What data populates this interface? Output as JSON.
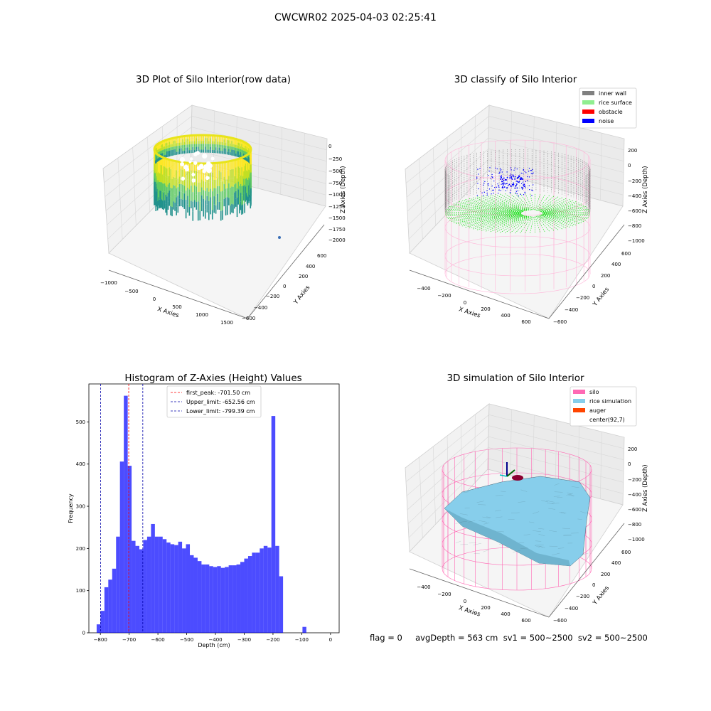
{
  "figure": {
    "suptitle": "CWCWR02 2025-04-03 02:25:41",
    "status_line": "flag = 0     avgDepth = 563 cm  sv1 = 500~2500  sv2 = 500~2500"
  },
  "panels": {
    "raw": {
      "title": "3D Plot of Silo Interior(row data)",
      "xlabel": "X Axies",
      "ylabel": "Y Axies",
      "zlabel": "Z Axies (Depth)",
      "xticks": [
        "−1000",
        "−500",
        "0",
        "500",
        "1000",
        "1500"
      ],
      "yticks": [
        "−600",
        "−400",
        "−200",
        "0",
        "200",
        "400",
        "600"
      ],
      "zticks": [
        "0",
        "−250",
        "−500",
        "−750",
        "−1000",
        "−1250",
        "−1500",
        "−1750",
        "−2000"
      ],
      "colors": [
        "#fde725",
        "#c2df23",
        "#5ec962",
        "#21918c"
      ]
    },
    "classify": {
      "title": "3D classify of Silo Interior",
      "xlabel": "X Axies",
      "ylabel": "Y Axies",
      "zlabel": "Z Axies (Depth)",
      "xticks": [
        "−400",
        "−200",
        "0",
        "200",
        "400",
        "600"
      ],
      "yticks": [
        "−600",
        "−400",
        "−200",
        "0",
        "200",
        "400",
        "600"
      ],
      "zticks": [
        "200",
        "0",
        "−200",
        "−400",
        "−600",
        "−800",
        "−1000"
      ],
      "legend": [
        {
          "label": "inner wall",
          "color": "#808080"
        },
        {
          "label": "rice surface",
          "color": "#90ee90"
        },
        {
          "label": "obstacle",
          "color": "#ff0000"
        },
        {
          "label": "noise",
          "color": "#0000ff"
        }
      ],
      "colors": {
        "wall": "#808080",
        "surface": "#00e000",
        "noise": "#0000ff",
        "cylinder": "#ffb6d9"
      }
    },
    "simulation": {
      "title": "3D simulation of Silo Interior",
      "xlabel": "X Axies",
      "ylabel": "Y Axies",
      "zlabel": "Z Axies (Depth)",
      "xticks": [
        "−400",
        "−200",
        "0",
        "200",
        "400",
        "600"
      ],
      "yticks": [
        "−600",
        "−400",
        "−200",
        "0",
        "200",
        "400",
        "600"
      ],
      "zticks": [
        "200",
        "0",
        "−200",
        "−400",
        "−600",
        "−800",
        "−1000"
      ],
      "legend": [
        {
          "label": "silo",
          "color": "#ff69b4"
        },
        {
          "label": "rice simulation",
          "color": "#87ceeb"
        },
        {
          "label": "auger",
          "color": "#ff4500"
        },
        {
          "label": "center(92,7)",
          "color": ""
        }
      ],
      "colors": {
        "silo": "#ff69b4",
        "rice": "#87ceeb",
        "edge": "#4a6a7a",
        "auger": "#8b0030"
      }
    }
  },
  "chart_data": {
    "type": "bar",
    "title": "Histogram of Z-Axies (Height) Values",
    "xlabel": "Depth (cm)",
    "ylabel": "Frequency",
    "xlim": [
      -840,
      30
    ],
    "ylim": [
      0,
      590
    ],
    "xticks": [
      -800,
      -700,
      -600,
      -500,
      -400,
      -300,
      -200,
      -100,
      0
    ],
    "yticks": [
      0,
      100,
      200,
      300,
      400,
      500
    ],
    "bin_width": 13.5,
    "bin_start": -813,
    "values": [
      20,
      52,
      108,
      126,
      152,
      228,
      406,
      562,
      396,
      218,
      206,
      198,
      220,
      228,
      258,
      228,
      228,
      222,
      214,
      210,
      208,
      216,
      200,
      210,
      184,
      178,
      170,
      162,
      162,
      158,
      156,
      158,
      154,
      156,
      160,
      160,
      162,
      168,
      176,
      182,
      190,
      190,
      200,
      206,
      202,
      514,
      206,
      134,
      0,
      0,
      0,
      0,
      0,
      14
    ],
    "bar_color": "#0000ff",
    "bar_opacity": 0.7,
    "vlines": [
      {
        "x": -701.5,
        "color": "#ff0000",
        "label": "first_peak: -701.50 cm"
      },
      {
        "x": -652.56,
        "color": "#0000aa",
        "label": "Upper_limit: -652.56 cm"
      },
      {
        "x": -799.39,
        "color": "#0000aa",
        "label": "Lower_limit: -799.39 cm"
      }
    ],
    "legend_position": "top-center"
  }
}
